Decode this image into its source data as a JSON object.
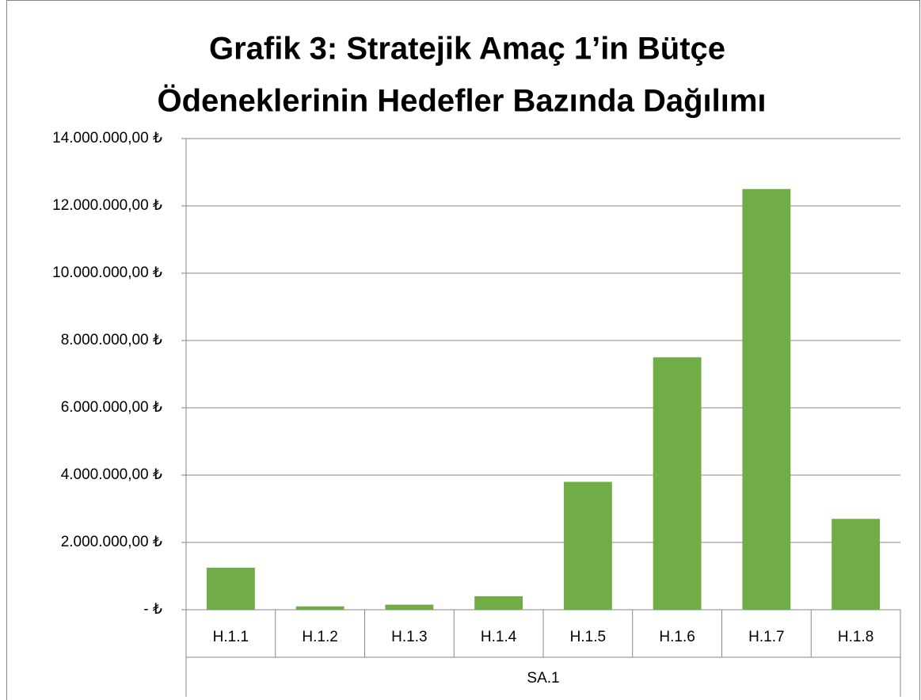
{
  "chart_data": {
    "type": "bar",
    "title": [
      "Grafik 3: Stratejik Amaç 1’in Bütçe",
      "Ödeneklerinin Hedefler Bazında Dağılımı"
    ],
    "categories": [
      "H.1.1",
      "H.1.2",
      "H.1.3",
      "H.1.4",
      "H.1.5",
      "H.1.6",
      "H.1.7",
      "H.1.8"
    ],
    "group": "SA.1",
    "values": [
      1250000,
      100000,
      150000,
      400000,
      3800000,
      7500000,
      12500000,
      2700000
    ],
    "color": "#70ad47",
    "ylim": [
      0,
      14000000
    ],
    "yticks": [
      {
        "value": 0,
        "label": "-  ₺"
      },
      {
        "value": 2000000,
        "label": "2.000.000,00 ₺"
      },
      {
        "value": 4000000,
        "label": "4.000.000,00 ₺"
      },
      {
        "value": 6000000,
        "label": "6.000.000,00 ₺"
      },
      {
        "value": 8000000,
        "label": "8.000.000,00 ₺"
      },
      {
        "value": 10000000,
        "label": "10.000.000,00 ₺"
      },
      {
        "value": 12000000,
        "label": "12.000.000,00 ₺"
      },
      {
        "value": 14000000,
        "label": "14.000.000,00 ₺"
      }
    ],
    "grid": true
  }
}
